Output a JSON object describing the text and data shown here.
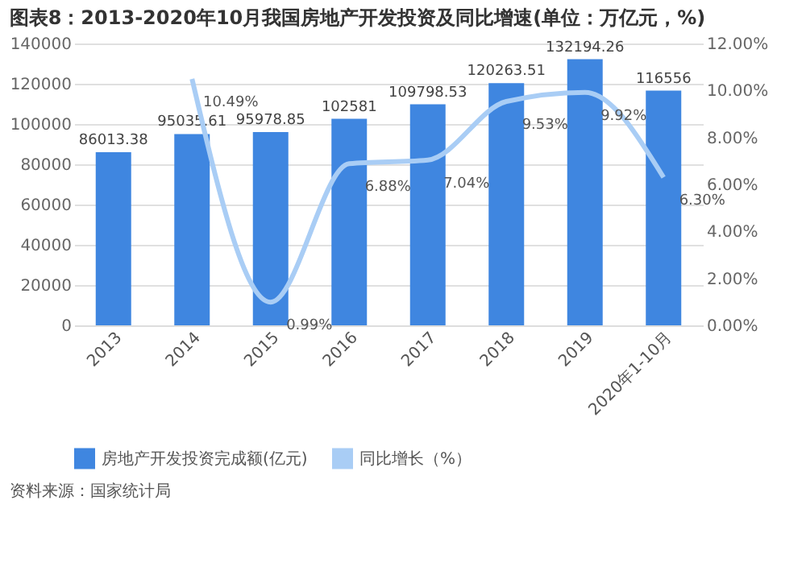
{
  "chart_data": {
    "type": "bar",
    "title": "图表8：2013-2020年10月我国房地产开发投资及同比增速(单位：万亿元，%)",
    "categories": [
      "2013",
      "2014",
      "2015",
      "2016",
      "2017",
      "2018",
      "2019",
      "2020年1-10月"
    ],
    "series": [
      {
        "name": "房地产开发投资完成额(亿元)",
        "color": "#3f86e0",
        "values": [
          86013.38,
          95035.61,
          95978.85,
          102581,
          109798.53,
          120263.51,
          132194.26,
          116556
        ],
        "value_labels": [
          "86013.38",
          "95035.61",
          "95978.85",
          "102581",
          "109798.53",
          "120263.51",
          "132194.26",
          "116556"
        ]
      },
      {
        "name": "同比增长（%）",
        "type": "line",
        "axis": "y2",
        "color": "#a9cdf5",
        "values": [
          null,
          10.49,
          0.99,
          6.88,
          7.04,
          9.53,
          9.92,
          6.3
        ],
        "value_labels": [
          null,
          "10.49%",
          "0.99%",
          "6.88%",
          "7.04%",
          "9.53%",
          "9.92%",
          "6.30%"
        ]
      }
    ],
    "ylim": [
      0,
      140000
    ],
    "yticks": [
      0,
      20000,
      40000,
      60000,
      80000,
      100000,
      120000,
      140000
    ],
    "y2lim": [
      0,
      12
    ],
    "y2ticks": [
      {
        "value": 0,
        "label": "0.00%"
      },
      {
        "value": 2,
        "label": "2.00%"
      },
      {
        "value": 4,
        "label": "4.00%"
      },
      {
        "value": 6,
        "label": "6.00%"
      },
      {
        "value": 8,
        "label": "8.00%"
      },
      {
        "value": 10,
        "label": "10.00%"
      },
      {
        "value": 12,
        "label": "12.00%"
      }
    ],
    "grid": "y",
    "legend": "bottom",
    "marker": "none",
    "line_style": "solid",
    "annotations": [
      "资料来源：国家统计局"
    ]
  }
}
